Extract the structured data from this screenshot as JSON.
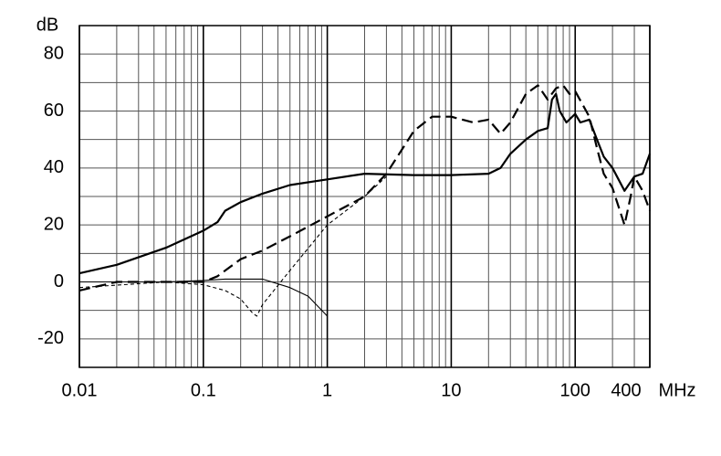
{
  "chart_data": {
    "type": "line",
    "y_label": "dB",
    "x_unit": "MHz",
    "xscale": "log",
    "grid": true,
    "xlim": [
      0.01,
      400
    ],
    "ylim": [
      -30,
      90
    ],
    "xticks": [
      0.01,
      0.1,
      1,
      10,
      100,
      400
    ],
    "xminor": [
      0.02,
      0.03,
      0.04,
      0.05,
      0.06,
      0.07,
      0.08,
      0.09,
      0.2,
      0.3,
      0.4,
      0.5,
      0.6,
      0.7,
      0.8,
      0.9,
      2,
      3,
      4,
      5,
      6,
      7,
      8,
      9,
      20,
      30,
      40,
      50,
      60,
      70,
      80,
      90,
      200,
      300
    ],
    "yticks": [
      -20,
      0,
      20,
      40,
      60,
      80
    ],
    "yminor": [
      -30,
      -10,
      10,
      30,
      50,
      70,
      90
    ],
    "series": [
      {
        "color": "#000000",
        "style": "solid",
        "weight": "thick",
        "x": [
          0.01,
          0.02,
          0.05,
          0.1,
          0.13,
          0.15,
          0.2,
          0.3,
          0.5,
          1,
          2,
          5,
          10,
          20,
          25,
          30,
          40,
          50,
          60,
          65,
          70,
          75,
          85,
          100,
          110,
          130,
          150,
          170,
          200,
          250,
          300,
          350,
          400
        ],
        "values": [
          3,
          6,
          12,
          18,
          21,
          25,
          28,
          31,
          34,
          36,
          38,
          37.5,
          37.5,
          38,
          40,
          45,
          50,
          53,
          54,
          64,
          66,
          60,
          56,
          59,
          56,
          57,
          50,
          44,
          40,
          32,
          37,
          38,
          45
        ]
      },
      {
        "color": "#000000",
        "style": "dashed",
        "weight": "thick",
        "x": [
          0.01,
          0.02,
          0.05,
          0.1,
          0.13,
          0.2,
          0.3,
          0.5,
          1,
          2,
          3,
          5,
          7,
          10,
          15,
          20,
          25,
          30,
          40,
          50,
          60,
          70,
          80,
          90,
          100,
          130,
          150,
          170,
          200,
          250,
          280,
          300,
          350,
          400
        ],
        "values": [
          -3,
          0,
          0,
          0,
          2,
          8,
          11,
          16,
          23,
          30,
          38,
          53,
          58,
          58,
          56,
          57,
          52,
          56,
          66,
          69,
          64,
          68,
          69,
          66,
          67,
          58,
          47,
          38,
          33,
          20,
          30,
          37,
          32,
          25
        ]
      },
      {
        "color": "#000000",
        "style": "dashed",
        "weight": "thin",
        "x": [
          0.01,
          0.05,
          0.1,
          0.15,
          0.2,
          0.25,
          0.27,
          0.3,
          0.5,
          1,
          2,
          3
        ],
        "values": [
          -2,
          0,
          -1,
          -3,
          -6,
          -11,
          -12,
          -8,
          4,
          20,
          30,
          37
        ]
      },
      {
        "color": "#000000",
        "style": "solid",
        "weight": "thin",
        "x": [
          0.01,
          0.05,
          0.1,
          0.15,
          0.2,
          0.3,
          0.5,
          0.7,
          1
        ],
        "values": [
          0,
          0,
          0.5,
          1,
          1,
          1,
          -2,
          -5,
          -12
        ]
      }
    ]
  }
}
